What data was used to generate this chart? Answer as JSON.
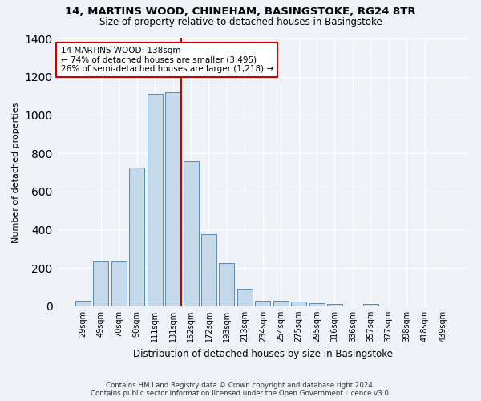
{
  "title1": "14, MARTINS WOOD, CHINEHAM, BASINGSTOKE, RG24 8TR",
  "title2": "Size of property relative to detached houses in Basingstoke",
  "xlabel": "Distribution of detached houses by size in Basingstoke",
  "ylabel": "Number of detached properties",
  "categories": [
    "29sqm",
    "49sqm",
    "70sqm",
    "90sqm",
    "111sqm",
    "131sqm",
    "152sqm",
    "172sqm",
    "193sqm",
    "213sqm",
    "234sqm",
    "254sqm",
    "275sqm",
    "295sqm",
    "316sqm",
    "336sqm",
    "357sqm",
    "377sqm",
    "398sqm",
    "418sqm",
    "439sqm"
  ],
  "values": [
    30,
    235,
    235,
    725,
    1110,
    1120,
    760,
    375,
    225,
    90,
    30,
    30,
    25,
    18,
    12,
    0,
    10,
    0,
    0,
    0,
    0
  ],
  "bar_color": "#c5d8ea",
  "bar_edge_color": "#5a8ab0",
  "vline_color": "#cc0000",
  "annotation_box_color": "#ffffff",
  "annotation_box_edge": "#cc0000",
  "property_line_label": "14 MARTINS WOOD: 138sqm",
  "annotation_line1": "← 74% of detached houses are smaller (3,495)",
  "annotation_line2": "26% of semi-detached houses are larger (1,218) →",
  "footer1": "Contains HM Land Registry data © Crown copyright and database right 2024.",
  "footer2": "Contains public sector information licensed under the Open Government Licence v3.0.",
  "ylim": [
    0,
    1400
  ],
  "bg_color": "#eef2f7",
  "plot_bg_color": "#eef2f7"
}
